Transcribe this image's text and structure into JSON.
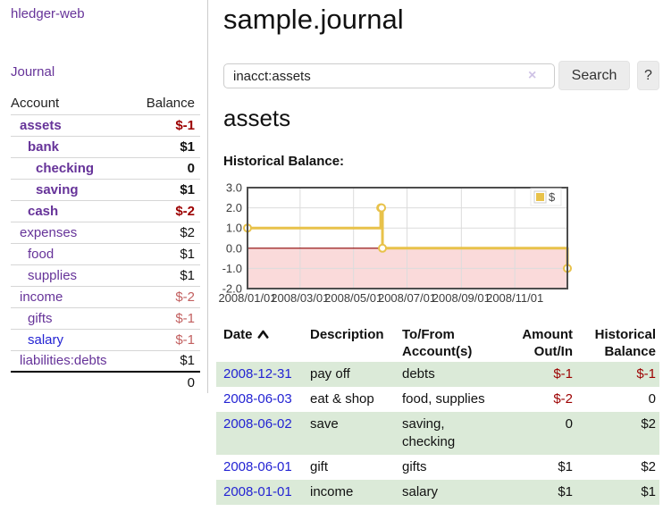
{
  "sidebar": {
    "brand": "hledger-web",
    "journal_link": "Journal",
    "accounts": {
      "header_account": "Account",
      "header_balance": "Balance",
      "rows": [
        {
          "name": "assets",
          "balance": "$-1"
        },
        {
          "name": "bank",
          "balance": "$1"
        },
        {
          "name": "checking",
          "balance": "0"
        },
        {
          "name": "saving",
          "balance": "$1"
        },
        {
          "name": "cash",
          "balance": "$-2"
        },
        {
          "name": "expenses",
          "balance": "$2"
        },
        {
          "name": "food",
          "balance": "$1"
        },
        {
          "name": "supplies",
          "balance": "$1"
        },
        {
          "name": "income",
          "balance": "$-2"
        },
        {
          "name": "gifts",
          "balance": "$-1"
        },
        {
          "name": "salary",
          "balance": "$-1"
        },
        {
          "name": "liabilities:debts",
          "balance": "$1"
        }
      ],
      "total": "0"
    }
  },
  "main": {
    "title": "sample.journal",
    "search": {
      "value": "inacct:assets",
      "clear_icon": "×",
      "search_button": "Search",
      "help_button": "?"
    },
    "account_heading": "assets",
    "chart_heading": "Historical Balance:"
  },
  "register": {
    "headers": {
      "date": "Date",
      "description": "Description",
      "accounts": "To/From Account(s)",
      "amount": "Amount Out/In",
      "balance": "Historical Balance"
    },
    "rows": [
      {
        "date": "2008-12-31",
        "description": "pay off",
        "accounts": "debts",
        "amount": "$-1",
        "balance": "$-1"
      },
      {
        "date": "2008-06-03",
        "description": "eat & shop",
        "accounts": "food, supplies",
        "amount": "$-2",
        "balance": "0"
      },
      {
        "date": "2008-06-02",
        "description": "save",
        "accounts": "saving, checking",
        "amount": "0",
        "balance": "$2"
      },
      {
        "date": "2008-06-01",
        "description": "gift",
        "accounts": "gifts",
        "amount": "$1",
        "balance": "$2"
      },
      {
        "date": "2008-01-01",
        "description": "income",
        "accounts": "salary",
        "amount": "$1",
        "balance": "$1"
      }
    ]
  },
  "chart_data": {
    "type": "line",
    "step": true,
    "title": "Historical Balance:",
    "x_range": [
      "2008-01-01",
      "2008-12-31"
    ],
    "ylim": [
      -2,
      3
    ],
    "x_ticks": [
      "2008/01/01",
      "2008/03/01",
      "2008/05/01",
      "2008/07/01",
      "2008/09/01",
      "2008/11/01"
    ],
    "y_ticks": [
      "3.0",
      "2.0",
      "1.0",
      "0.0",
      "-1.0",
      "-2.0"
    ],
    "series": [
      {
        "name": "$",
        "color": "#e8c24a",
        "points": [
          [
            "2008-01-01",
            1
          ],
          [
            "2008-06-01",
            2
          ],
          [
            "2008-06-02",
            2
          ],
          [
            "2008-06-03",
            0
          ],
          [
            "2008-12-31",
            -1
          ]
        ]
      }
    ],
    "legend": {
      "label": "$",
      "position": "top-right"
    },
    "negative_region_color": "#fadada",
    "zero_line_color": "#8b0000",
    "grid_color": "#dcdcdc",
    "border_color": "#4d4d4d",
    "tick_label_color": "#3c3c3c"
  },
  "colors": {
    "accent_purple": "#663399",
    "link_blue": "#2323d3",
    "negative_strong": "#9c0000",
    "negative_soft": "#c25f5f",
    "row_green": "#dbead8",
    "series_gold": "#e8c24a"
  }
}
